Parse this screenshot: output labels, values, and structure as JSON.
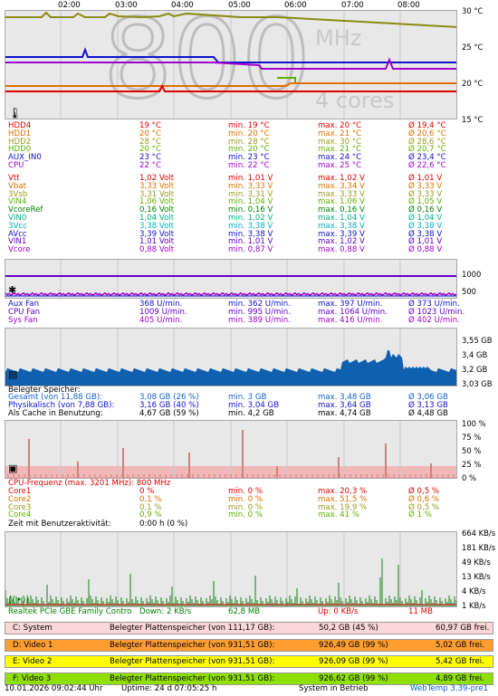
{
  "time_ticks": [
    "02:00",
    "03:00",
    "04:00",
    "05:00",
    "06:00",
    "07:00",
    "08:00"
  ],
  "temp_graph": {
    "watermark_big": "800",
    "watermark_unit": "MHz",
    "watermark_cores": "4 cores",
    "y_labels": [
      "30 °C",
      "25 °C",
      "20 °C",
      "15 °C"
    ]
  },
  "temp_rows": [
    {
      "name": "HDD4",
      "cur": "19 °C",
      "min": "min. 19 °C",
      "max": "max. 20 °C",
      "avg": "Ø 19,4 °C",
      "color": "#e00000"
    },
    {
      "name": "HDD1",
      "cur": "20 °C",
      "min": "min. 20 °C",
      "max": "max. 21 °C",
      "avg": "Ø 20,6 °C",
      "color": "#e07000"
    },
    {
      "name": "HDD2",
      "cur": "28 °C",
      "min": "min. 28 °C",
      "max": "max. 30 °C",
      "avg": "Ø 28,6 °C",
      "color": "#9a9a20"
    },
    {
      "name": "HDD0",
      "cur": "20 °C",
      "min": "min. 20 °C",
      "max": "max. 21 °C",
      "avg": "Ø 20,7 °C",
      "color": "#60b000"
    },
    {
      "name": "AUX_IN0",
      "cur": "23 °C",
      "min": "min. 23 °C",
      "max": "max. 24 °C",
      "avg": "Ø 23,4 °C",
      "color": "#1010d0"
    },
    {
      "name": "CPU",
      "cur": "22 °C",
      "min": "min. 22 °C",
      "max": "max. 25 °C",
      "avg": "Ø 22,6 °C",
      "color": "#a000d0"
    }
  ],
  "volt_rows": [
    {
      "name": "Vtt",
      "cur": "1,02 Volt",
      "min": "min. 1,01 V",
      "max": "max. 1,02 V",
      "avg": "Ø 1,01 V",
      "color": "#e00000"
    },
    {
      "name": "Vbat",
      "cur": "3,33 Volt",
      "min": "min. 3,33 V",
      "max": "max. 3,34 V",
      "avg": "Ø 3,33 V",
      "color": "#e07000"
    },
    {
      "name": "3Vsb",
      "cur": "3,31 Volt",
      "min": "min. 3,31 V",
      "max": "max. 3,33 V",
      "avg": "Ø 3,33 V",
      "color": "#9a9a20"
    },
    {
      "name": "VIN4",
      "cur": "1,06 Volt",
      "min": "min. 1,04 V",
      "max": "max. 1,06 V",
      "avg": "Ø 1,05 V",
      "color": "#60b000"
    },
    {
      "name": "VcoreRef",
      "cur": "0,16 Volt",
      "min": "min. 0,16 V",
      "max": "max. 0,16 V",
      "avg": "Ø 0,16 V",
      "color": "#008000"
    },
    {
      "name": "VIN0",
      "cur": "1,04 Volt",
      "min": "min. 1,02 V",
      "max": "max. 1,04 V",
      "avg": "Ø 1,04 V",
      "color": "#00b080"
    },
    {
      "name": "3Vcc",
      "cur": "3,38 Volt",
      "min": "min. 3,38 V",
      "max": "max. 3,38 V",
      "avg": "Ø 3,38 V",
      "color": "#00b0c0"
    },
    {
      "name": "AVcc",
      "cur": "3,39 Volt",
      "min": "min. 3,38 V",
      "max": "max. 3,39 V",
      "avg": "Ø 3,38 V",
      "color": "#1010d0"
    },
    {
      "name": "VIN1",
      "cur": "1,01 Volt",
      "min": "min. 1,01 V",
      "max": "max. 1,02 V",
      "avg": "Ø 1,01 V",
      "color": "#6000d0"
    },
    {
      "name": "Vcore",
      "cur": "0,88 Volt",
      "min": "min. 0,87 V",
      "max": "max. 0,88 V",
      "avg": "Ø 0,88 V",
      "color": "#a000d0"
    }
  ],
  "fan_graph": {
    "y_labels": [
      "1000",
      "500"
    ]
  },
  "fan_rows": [
    {
      "name": "Aux Fan",
      "cur": "368 U/min.",
      "min": "min. 362 U/min.",
      "max": "max. 397 U/min.",
      "avg": "Ø 373 U/min.",
      "color": "#1010d0"
    },
    {
      "name": "CPU Fan",
      "cur": "1009 U/min.",
      "min": "min. 995 U/min.",
      "max": "max. 1064 U/min.",
      "avg": "Ø 1023 U/min.",
      "color": "#6000d0"
    },
    {
      "name": "Sys Fan",
      "cur": "405 U/min.",
      "min": "min. 389 U/min.",
      "max": "max. 416 U/min.",
      "avg": "Ø 402 U/min.",
      "color": "#a000d0"
    }
  ],
  "mem_graph": {
    "y_labels": [
      "3,55 GB",
      "3,4 GB",
      "3,2 GB",
      "3,03 GB"
    ]
  },
  "mem_title": "Belegter Speicher:",
  "mem_rows": [
    {
      "name": "Gesamt (von 11,88 GB):",
      "cur": "3,08 GB (26 %)",
      "min": "min. 3 GB",
      "max": "max. 3,48 GB",
      "avg": "Ø 3,06 GB",
      "color": "#1060d0"
    },
    {
      "name": "Physikalisch (von 7,88 GB):",
      "cur": "3,16 GB (40 %)",
      "min": "min. 3,04 GB",
      "max": "max. 3,64 GB",
      "avg": "Ø 3,13 GB",
      "color": "#1010d0"
    },
    {
      "name": "Als Cache in Benutzung:",
      "cur": "4,67 GB (59 %)",
      "min": "min. 4,2 GB",
      "max": "max. 4,74 GB",
      "avg": "Ø 4,48 GB",
      "color": "#000000"
    }
  ],
  "cpu_graph": {
    "y_labels": [
      "100 %",
      "75 %",
      "50 %",
      "25 %",
      "0 %"
    ]
  },
  "cpu_freq": "CPU-Frequenz (max. 3201 MHz): 800 MHz",
  "cpu_rows": [
    {
      "name": "Core1",
      "cur": "0 %",
      "min": "min. 0 %",
      "max": "max. 20,3 %",
      "avg": "Ø 0,5 %",
      "color": "#e00000"
    },
    {
      "name": "Core2",
      "cur": "0,1 %",
      "min": "min. 0 %",
      "max": "max. 51,5 %",
      "avg": "Ø 0,6 %",
      "color": "#e07000"
    },
    {
      "name": "Core3",
      "cur": "0,1 %",
      "min": "min. 0 %",
      "max": "max. 19,9 %",
      "avg": "Ø 0,5 %",
      "color": "#9a9a20"
    },
    {
      "name": "Core4",
      "cur": "0,9 %",
      "min": "min. 0 %",
      "max": "max. 41 %",
      "avg": "Ø 1 %",
      "color": "#60b000"
    }
  ],
  "idle_label": "Zeit mit Benutzeraktivität:",
  "idle_value": "0:00 h (0 %)",
  "net_graph": {
    "y_labels": [
      "664 KB/s",
      "181 KB/s",
      "49 KB/s",
      "13 KB/s",
      "4 KB/s",
      "1 KB/s"
    ]
  },
  "net_row": {
    "name": "Realtek PCIe GBE Family Contro",
    "down": "Down: 2 KB/s",
    "total_down": "62,8 MB",
    "up": "Up: 0 KB/s",
    "total_up": "11 MB"
  },
  "disks": [
    {
      "drive": "C: System",
      "label": "Belegter Plattenspeicher (von 111,17 GB):",
      "used": "50,2 GB (45 %)",
      "free": "60,97 GB frei.",
      "bg": "#fbd7d7",
      "fill": 0.45
    },
    {
      "drive": "D: Video 1",
      "label": "Belegter Plattenspeicher (von 931,51 GB):",
      "used": "926,49 GB (99 %)",
      "free": "5,02 GB frei.",
      "bg": "#ff9e30",
      "fill": 0.99
    },
    {
      "drive": "E: Video 2",
      "label": "Belegter Plattenspeicher (von 931,51 GB):",
      "used": "926,09 GB (99 %)",
      "free": "5,42 GB frei.",
      "bg": "#ffff00",
      "fill": 0.99
    },
    {
      "drive": "F: Video 3",
      "label": "Belegter Plattenspeicher (von 931,51 GB):",
      "used": "926,62 GB (99 %)",
      "free": "4,89 GB frei.",
      "bg": "#8fe000",
      "fill": 0.99
    }
  ],
  "status": {
    "datetime": "10.01.2026 09:02:44 Uhr",
    "uptime": "Uptime: 24 d 07:05:25 h",
    "state": "System in Betrieb",
    "version": "WebTemp 3.39-pre1"
  },
  "colors": {
    "version": "#1060d0"
  }
}
